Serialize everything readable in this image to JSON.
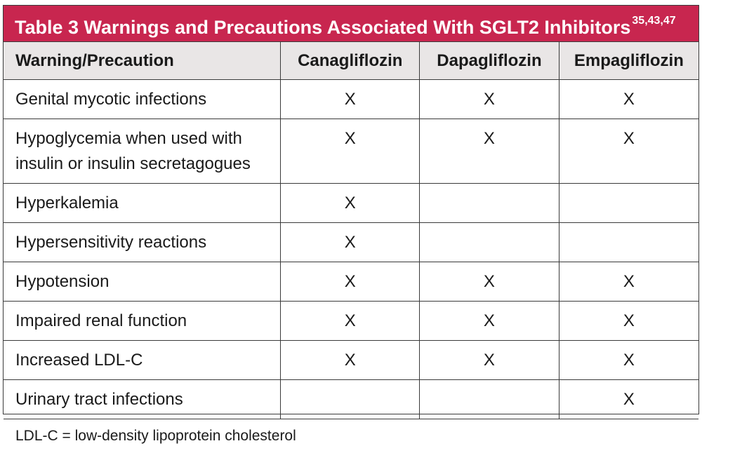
{
  "table": {
    "title": "Table 3  Warnings and Precautions Associated With SGLT2 Inhibitors",
    "title_refs": "35,43,47",
    "headers": [
      "Warning/Precaution",
      "Canagliflozin",
      "Dapagliflozin",
      "Empagliflozin"
    ],
    "rows": [
      {
        "label": "Genital mycotic infections",
        "cells": [
          "X",
          "X",
          "X"
        ]
      },
      {
        "label_lines": [
          "Hypoglycemia when used with",
          "insulin or insulin secretagogues"
        ],
        "cells": [
          "X",
          "X",
          "X"
        ]
      },
      {
        "label": "Hyperkalemia",
        "cells": [
          "X",
          "",
          ""
        ]
      },
      {
        "label": "Hypersensitivity reactions",
        "cells": [
          "X",
          "",
          ""
        ]
      },
      {
        "label": "Hypotension",
        "cells": [
          "X",
          "X",
          "X"
        ]
      },
      {
        "label": "Impaired renal function",
        "cells": [
          "X",
          "X",
          "X"
        ]
      },
      {
        "label": "Increased LDL-C",
        "cells": [
          "X",
          "X",
          "X"
        ]
      },
      {
        "label": "Urinary tract infections",
        "cells": [
          "",
          "",
          "X"
        ]
      }
    ],
    "footnote": "LDL-C = low-density lipoprotein cholesterol",
    "colors": {
      "title_background": "#c8264f",
      "header_background": "#e9e6e6",
      "border": "#3a3a3a"
    }
  }
}
